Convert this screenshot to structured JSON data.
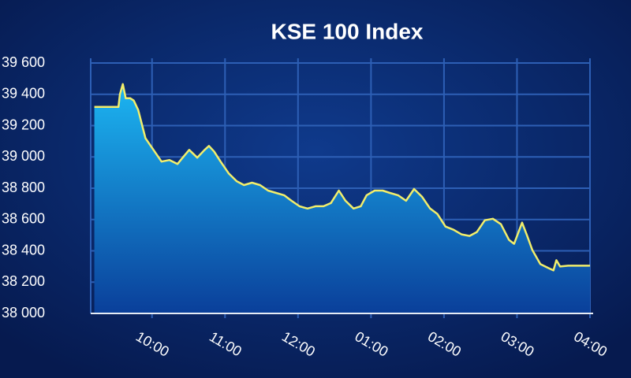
{
  "chart_data": {
    "type": "area",
    "title": "KSE 100 Index",
    "x": [
      9.21,
      9.54,
      9.56,
      9.6,
      9.64,
      9.7,
      9.75,
      9.81,
      9.91,
      10.02,
      10.13,
      10.24,
      10.35,
      10.42,
      10.51,
      10.62,
      10.72,
      10.78,
      10.85,
      10.94,
      11.05,
      11.16,
      11.26,
      11.37,
      11.48,
      11.59,
      11.7,
      11.81,
      11.91,
      12.02,
      12.13,
      12.24,
      12.35,
      12.45,
      12.56,
      12.65,
      12.76,
      12.86,
      12.94,
      13.05,
      13.16,
      13.26,
      13.37,
      13.48,
      13.59,
      13.7,
      13.81,
      13.91,
      14.02,
      14.13,
      14.24,
      14.35,
      14.45,
      14.56,
      14.67,
      14.78,
      14.89,
      14.96,
      15.07,
      15.14,
      15.21,
      15.32,
      15.43,
      15.5,
      15.54,
      15.59,
      15.7,
      16.0
    ],
    "series": [
      {
        "name": "KSE 100",
        "color": "#f2ee6b",
        "values": [
          39320,
          39320,
          39400,
          39465,
          39375,
          39375,
          39360,
          39300,
          39120,
          39045,
          38970,
          38980,
          38955,
          38995,
          39045,
          38995,
          39045,
          39070,
          39035,
          38970,
          38895,
          38845,
          38820,
          38835,
          38820,
          38785,
          38770,
          38755,
          38720,
          38685,
          38670,
          38685,
          38685,
          38705,
          38785,
          38720,
          38670,
          38685,
          38755,
          38785,
          38785,
          38770,
          38755,
          38720,
          38795,
          38745,
          38670,
          38635,
          38555,
          38535,
          38505,
          38495,
          38520,
          38595,
          38605,
          38570,
          38470,
          38445,
          38580,
          38495,
          38405,
          38315,
          38290,
          38275,
          38340,
          38300,
          38305,
          38305
        ]
      }
    ],
    "xlim": [
      9.16,
      16
    ],
    "xticks": [
      {
        "value": 10,
        "label": "10:00"
      },
      {
        "value": 11,
        "label": "11:00"
      },
      {
        "value": 12,
        "label": "12:00"
      },
      {
        "value": 13,
        "label": "01:00"
      },
      {
        "value": 14,
        "label": "02:00"
      },
      {
        "value": 15,
        "label": "03:00"
      },
      {
        "value": 16,
        "label": "04:00"
      }
    ],
    "ylim": [
      38000,
      39600
    ],
    "yticks": [
      {
        "value": 38000,
        "label": "38 000"
      },
      {
        "value": 38200,
        "label": "38 200"
      },
      {
        "value": 38400,
        "label": "38 400"
      },
      {
        "value": 38600,
        "label": "38 600"
      },
      {
        "value": 38800,
        "label": "38 800"
      },
      {
        "value": 39000,
        "label": "39 000"
      },
      {
        "value": 39200,
        "label": "39 200"
      },
      {
        "value": 39400,
        "label": "39 400"
      },
      {
        "value": 39600,
        "label": "39 600"
      }
    ],
    "grid": true
  }
}
